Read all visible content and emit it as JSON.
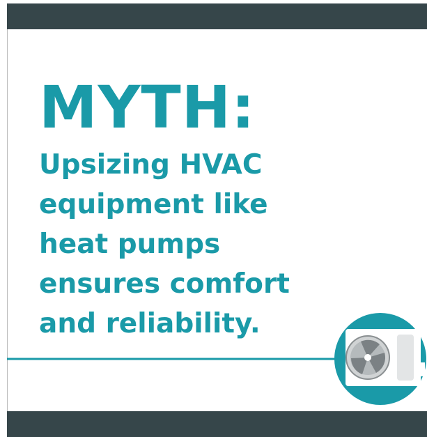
{
  "title": "MYTH:",
  "body_lines": [
    "Upsizing HVAC",
    "equipment like",
    "heat pumps",
    "ensures comfort",
    "and reliability."
  ]
}
